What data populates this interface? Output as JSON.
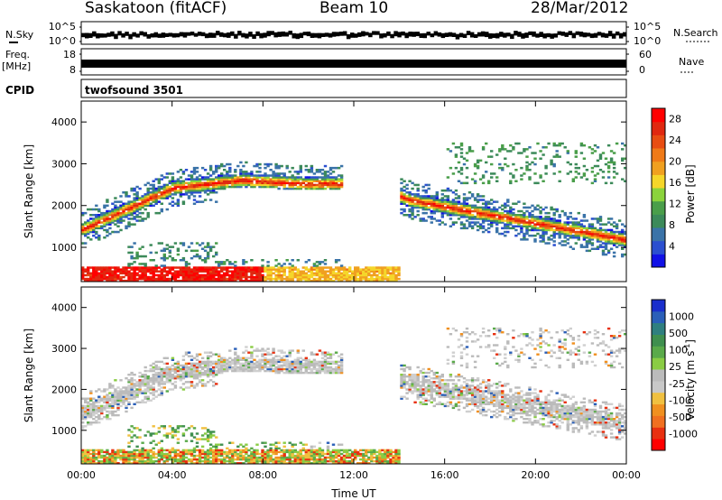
{
  "header": {
    "site": "Saskatoon (fitACF)",
    "beam": "Beam 10",
    "date": "28/Mar/2012"
  },
  "strips": {
    "nsky_label": "N.Sky",
    "nsky_top": "10^5",
    "nsky_bottom": "10^0",
    "nsearch_label": "N.Search",
    "nsearch_top": "10^5",
    "nsearch_bottom": "10^0",
    "freq_label": "Freq.",
    "freq_unit": "[MHz]",
    "freq_top": "18",
    "freq_bottom": "8",
    "nave_label": "Nave",
    "nave_top": "60",
    "nave_bottom": "0",
    "cpid_label": "CPID",
    "cpid_value": "twofsound 3501"
  },
  "chart_data": [
    {
      "type": "heatmap",
      "name_panel": "power",
      "xlabel": "Time UT",
      "ylabel": "Slant Range [km]",
      "x_ticks": [
        "00:00",
        "04:00",
        "08:00",
        "12:00",
        "16:00",
        "20:00",
        "00:00"
      ],
      "x_range_hours": [
        0,
        24
      ],
      "y_ticks": [
        1000,
        2000,
        3000,
        4000
      ],
      "y_range_km": [
        180,
        4500
      ],
      "colorbar": {
        "label": "Power [dB]",
        "ticks": [
          "4",
          "8",
          "12",
          "16",
          "20",
          "24",
          "28"
        ],
        "range": [
          0,
          30
        ],
        "colors": [
          "#1111e6",
          "#2b4fd0",
          "#3a73a8",
          "#3c8a5a",
          "#4a9e4a",
          "#8bd33c",
          "#f5d62a",
          "#f0a020",
          "#ef7a18",
          "#e84d12",
          "#e02810",
          "#ff0000"
        ]
      }
    },
    {
      "type": "heatmap",
      "name_panel": "velocity",
      "xlabel": "Time UT",
      "ylabel": "Slant Range [km]",
      "x_ticks": [
        "00:00",
        "04:00",
        "08:00",
        "12:00",
        "16:00",
        "20:00",
        "00:00"
      ],
      "x_range_hours": [
        0,
        24
      ],
      "y_ticks": [
        1000,
        2000,
        3000,
        4000
      ],
      "y_range_km": [
        180,
        4500
      ],
      "colorbar": {
        "label": "Velocity [m s^-1]",
        "ticks": [
          "1000",
          "500",
          "100",
          "25",
          "-25",
          "-100",
          "-500",
          "-1000"
        ],
        "colors": [
          "#1a2fcc",
          "#2a5fb8",
          "#2f7f7f",
          "#3f8f4f",
          "#5aaa4a",
          "#8acc44",
          "#bbbbbb",
          "#c8c8c8",
          "#f0c040",
          "#f09020",
          "#f07020",
          "#e83010",
          "#ff0000"
        ]
      }
    }
  ]
}
